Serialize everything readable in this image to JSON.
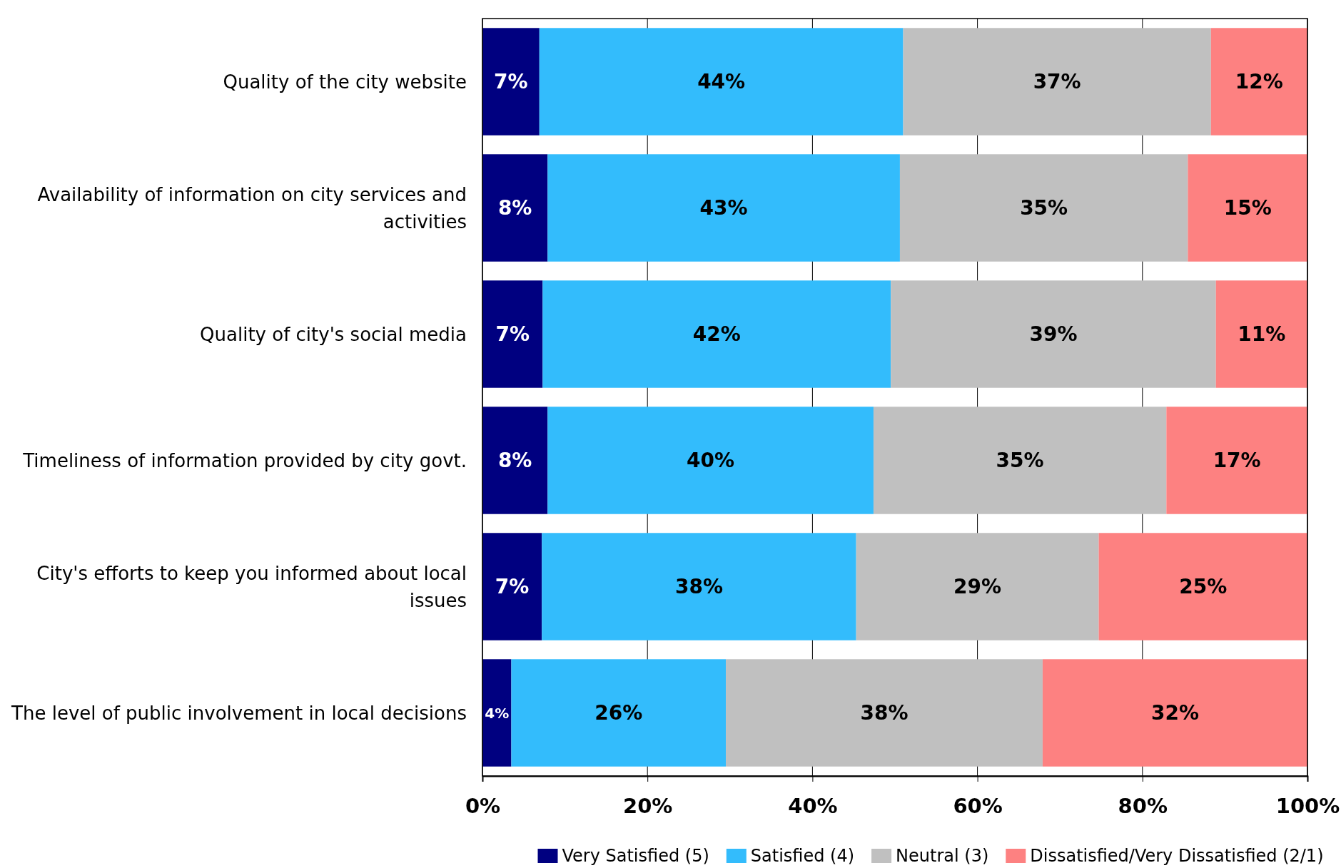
{
  "chart_data": {
    "type": "bar",
    "orientation": "horizontal",
    "stacked": true,
    "categories": [
      "Quality of the city website",
      "Availability of information on city services and activities",
      "Quality of city's social media",
      "Timeliness of information provided by city govt.",
      "City's efforts to keep you informed about local issues",
      "The level of public involvement in local decisions"
    ],
    "series": [
      {
        "name": "Very Satisfied (5)",
        "color": "#000080",
        "values": [
          6.9,
          7.9,
          7.3,
          7.9,
          7.2,
          3.5
        ],
        "value_labels": [
          "7%",
          "8%",
          "7%",
          "8%",
          "7%",
          "4%"
        ]
      },
      {
        "name": "Satisfied (4)",
        "color": "#33bcfc",
        "values": [
          44.1,
          42.7,
          42.2,
          39.5,
          38.1,
          26.0
        ],
        "value_labels": [
          "44%",
          "43%",
          "42%",
          "40%",
          "38%",
          "26%"
        ]
      },
      {
        "name": "Neutral (3)",
        "color": "#c0c0c0",
        "values": [
          37.3,
          34.9,
          39.4,
          35.5,
          29.4,
          38.4
        ],
        "value_labels": [
          "37%",
          "35%",
          "39%",
          "35%",
          "29%",
          "38%"
        ]
      },
      {
        "name": "Dissatisfied/Very Dissatisfied (2/1)",
        "color": "#fd8181",
        "values": [
          11.7,
          14.5,
          11.1,
          17.1,
          25.3,
          32.1
        ],
        "value_labels": [
          "12%",
          "15%",
          "11%",
          "17%",
          "25%",
          "32%"
        ]
      }
    ],
    "xlim": [
      0,
      100
    ],
    "xticks": [
      {
        "value": 0,
        "label": "0%"
      },
      {
        "value": 20,
        "label": "20%"
      },
      {
        "value": 40,
        "label": "40%"
      },
      {
        "value": 60,
        "label": "60%"
      },
      {
        "value": 80,
        "label": "80%"
      },
      {
        "value": 100,
        "label": "100%"
      }
    ],
    "grid": "x",
    "legend": "bottom"
  }
}
